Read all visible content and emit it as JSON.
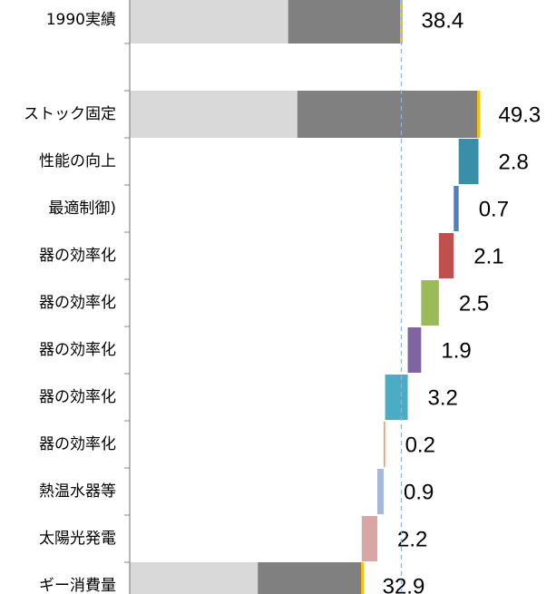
{
  "chart_data": {
    "type": "waterfall",
    "categories": [
      "1990実績",
      null,
      "ストック固定",
      "性能の向上",
      "最適制御)",
      "器の効率化",
      "器の効率化",
      "器の効率化",
      "器の効率化",
      "器の効率化",
      "熱温水器等",
      "太陽光発電",
      "ギー消費量"
    ],
    "values": [
      38.4,
      null,
      49.3,
      2.8,
      0.7,
      2.1,
      2.5,
      1.9,
      3.2,
      0.2,
      0.9,
      2.2,
      32.9
    ],
    "colors": [
      null,
      null,
      null,
      "#3a8fa8",
      "#4f81bd",
      "#c0504d",
      "#9bbb59",
      "#8064a2",
      "#4bacc6",
      "#f79646",
      "#a6b9d9",
      "#d9a5a5",
      null
    ],
    "series": [
      {
        "color": "#d9d9d9",
        "values": [
          22.4,
          null,
          23.7,
          null,
          null,
          null,
          null,
          null,
          null,
          null,
          null,
          null,
          18.1
        ]
      },
      {
        "color": "#808080",
        "values": [
          16.0,
          null,
          25.6,
          null,
          null,
          null,
          null,
          null,
          null,
          null,
          null,
          null,
          14.8
        ]
      }
    ],
    "total_marker_color": "#ffc000",
    "reference_line_color": "#8fb4dc"
  }
}
